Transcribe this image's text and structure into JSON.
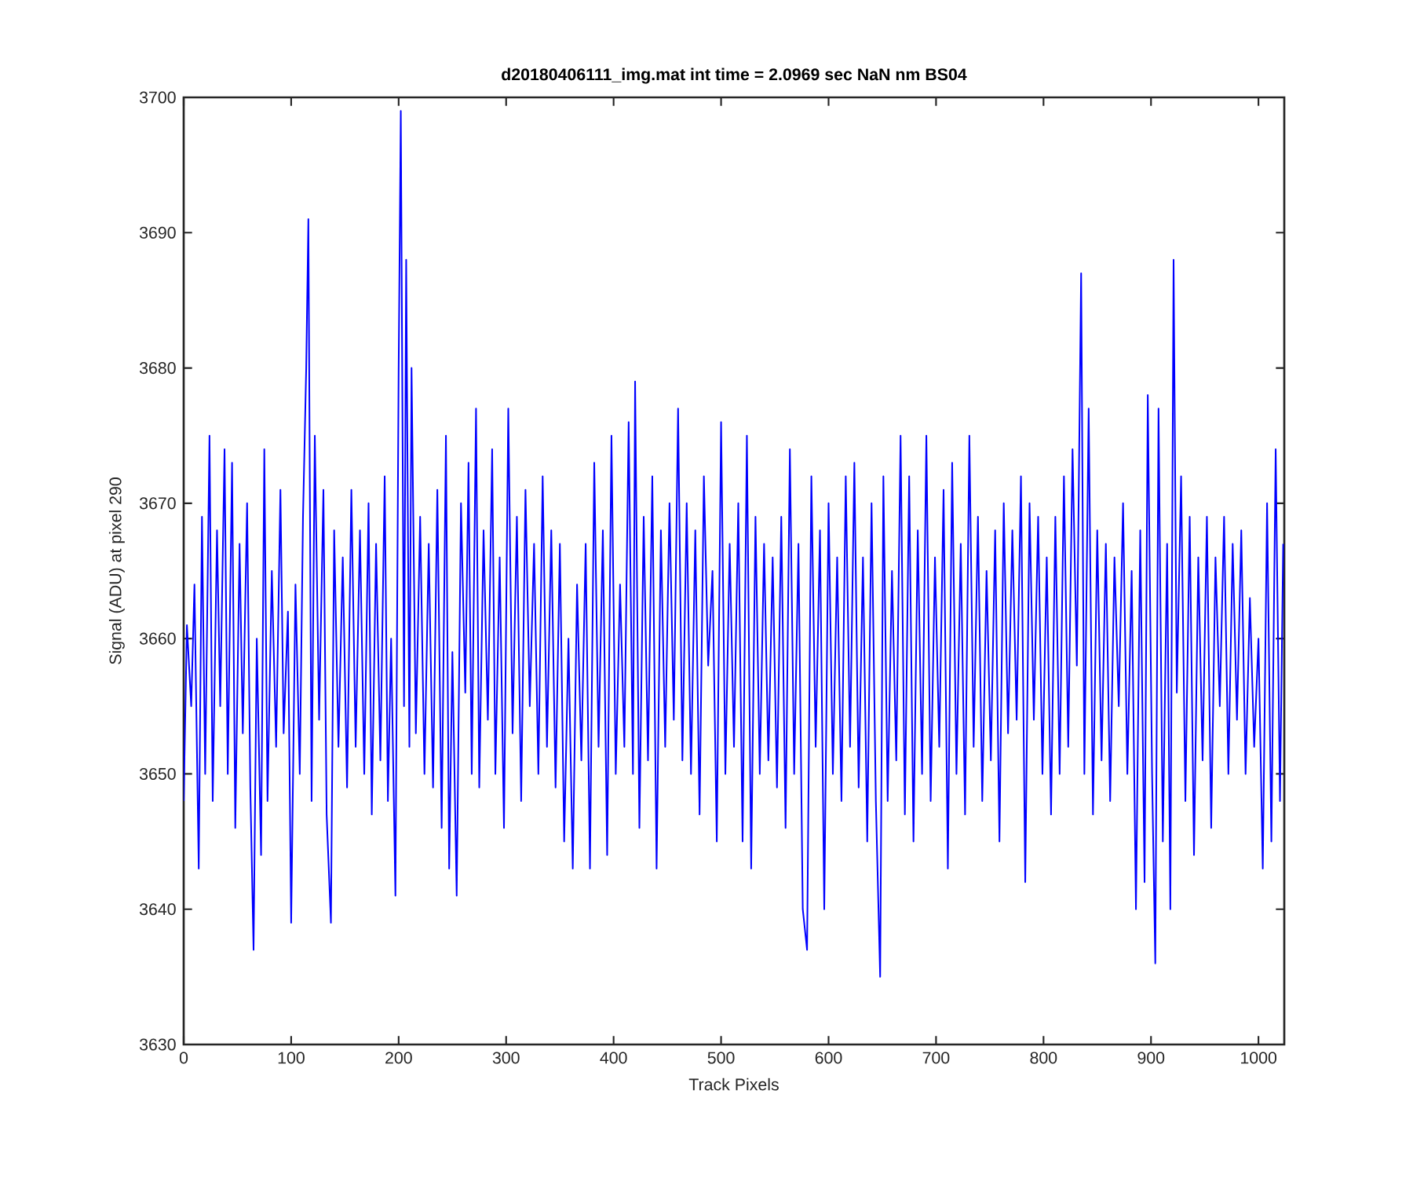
{
  "chart_data": {
    "type": "line",
    "title": "d20180406111_img.mat int time = 2.0969 sec  NaN nm BS04",
    "xlabel": "Track Pixels",
    "ylabel": "Signal (ADU) at pixel 290",
    "xlim": [
      0,
      1024
    ],
    "ylim": [
      3630,
      3700
    ],
    "xticks": [
      0,
      100,
      200,
      300,
      400,
      500,
      600,
      700,
      800,
      900,
      1000
    ],
    "yticks": [
      3630,
      3640,
      3650,
      3660,
      3670,
      3680,
      3690,
      3700
    ],
    "series": [
      {
        "color": "#0000ff",
        "x": [
          0,
          3,
          7,
          10,
          14,
          17,
          20,
          24,
          27,
          31,
          34,
          38,
          41,
          45,
          48,
          52,
          55,
          59,
          62,
          65,
          68,
          72,
          75,
          78,
          82,
          86,
          90,
          93,
          97,
          100,
          104,
          108,
          111,
          114,
          116,
          119,
          122,
          126,
          130,
          133,
          137,
          140,
          144,
          148,
          152,
          156,
          160,
          164,
          168,
          172,
          175,
          179,
          183,
          187,
          190,
          193,
          197,
          200,
          202,
          205,
          207,
          210,
          212,
          216,
          220,
          224,
          228,
          232,
          236,
          240,
          244,
          247,
          250,
          254,
          258,
          262,
          265,
          268,
          272,
          275,
          279,
          283,
          287,
          290,
          294,
          298,
          302,
          306,
          310,
          314,
          318,
          322,
          326,
          330,
          334,
          338,
          342,
          346,
          350,
          354,
          358,
          362,
          366,
          370,
          374,
          378,
          382,
          386,
          390,
          394,
          398,
          402,
          406,
          410,
          414,
          418,
          420,
          424,
          428,
          432,
          436,
          440,
          444,
          448,
          452,
          456,
          460,
          464,
          468,
          472,
          476,
          480,
          484,
          488,
          492,
          496,
          500,
          504,
          508,
          512,
          516,
          520,
          524,
          528,
          532,
          536,
          540,
          544,
          548,
          552,
          556,
          560,
          564,
          568,
          572,
          576,
          580,
          584,
          588,
          592,
          596,
          600,
          604,
          608,
          612,
          616,
          620,
          624,
          628,
          632,
          636,
          640,
          644,
          648,
          651,
          655,
          659,
          663,
          667,
          671,
          675,
          679,
          683,
          687,
          691,
          695,
          699,
          703,
          707,
          711,
          715,
          719,
          723,
          727,
          731,
          735,
          739,
          743,
          747,
          751,
          755,
          759,
          763,
          767,
          771,
          775,
          779,
          783,
          787,
          791,
          795,
          799,
          803,
          807,
          811,
          815,
          819,
          823,
          827,
          831,
          835,
          838,
          842,
          846,
          850,
          854,
          858,
          862,
          866,
          870,
          874,
          878,
          882,
          886,
          890,
          894,
          897,
          901,
          904,
          907,
          911,
          915,
          918,
          921,
          924,
          928,
          932,
          936,
          940,
          944,
          948,
          952,
          956,
          960,
          964,
          968,
          972,
          976,
          980,
          984,
          988,
          992,
          996,
          1000,
          1004,
          1008,
          1012,
          1016,
          1020,
          1023
        ],
        "values": [
          3648,
          3661,
          3655,
          3664,
          3643,
          3669,
          3650,
          3675,
          3648,
          3668,
          3655,
          3674,
          3650,
          3673,
          3646,
          3667,
          3653,
          3670,
          3649,
          3637,
          3660,
          3644,
          3674,
          3648,
          3665,
          3652,
          3671,
          3653,
          3662,
          3639,
          3664,
          3650,
          3669,
          3680,
          3691,
          3648,
          3675,
          3654,
          3671,
          3647,
          3639,
          3668,
          3652,
          3666,
          3649,
          3671,
          3652,
          3668,
          3650,
          3670,
          3647,
          3667,
          3651,
          3672,
          3648,
          3660,
          3641,
          3680,
          3699,
          3655,
          3688,
          3652,
          3680,
          3653,
          3669,
          3650,
          3667,
          3649,
          3671,
          3646,
          3675,
          3643,
          3659,
          3641,
          3670,
          3656,
          3673,
          3650,
          3677,
          3649,
          3668,
          3654,
          3674,
          3650,
          3666,
          3646,
          3677,
          3653,
          3669,
          3648,
          3671,
          3655,
          3667,
          3650,
          3672,
          3652,
          3668,
          3649,
          3667,
          3645,
          3660,
          3643,
          3664,
          3651,
          3667,
          3643,
          3673,
          3652,
          3668,
          3644,
          3675,
          3650,
          3664,
          3652,
          3676,
          3650,
          3679,
          3646,
          3669,
          3651,
          3672,
          3643,
          3668,
          3652,
          3670,
          3654,
          3677,
          3651,
          3670,
          3650,
          3668,
          3647,
          3672,
          3658,
          3665,
          3645,
          3676,
          3650,
          3667,
          3652,
          3670,
          3645,
          3675,
          3643,
          3669,
          3650,
          3667,
          3651,
          3666,
          3649,
          3669,
          3646,
          3674,
          3650,
          3667,
          3640,
          3637,
          3672,
          3652,
          3668,
          3640,
          3670,
          3650,
          3666,
          3648,
          3672,
          3652,
          3673,
          3649,
          3666,
          3645,
          3670,
          3648,
          3635,
          3672,
          3648,
          3665,
          3651,
          3675,
          3647,
          3672,
          3645,
          3668,
          3650,
          3675,
          3648,
          3666,
          3652,
          3671,
          3643,
          3673,
          3650,
          3667,
          3647,
          3675,
          3652,
          3669,
          3648,
          3665,
          3651,
          3668,
          3645,
          3670,
          3653,
          3668,
          3654,
          3672,
          3642,
          3670,
          3654,
          3669,
          3650,
          3666,
          3647,
          3669,
          3650,
          3672,
          3652,
          3674,
          3658,
          3687,
          3650,
          3677,
          3647,
          3668,
          3651,
          3667,
          3648,
          3666,
          3655,
          3670,
          3650,
          3665,
          3640,
          3668,
          3642,
          3678,
          3650,
          3636,
          3677,
          3645,
          3667,
          3640,
          3688,
          3656,
          3672,
          3648,
          3669,
          3644,
          3666,
          3651,
          3669,
          3646,
          3666,
          3655,
          3669,
          3650,
          3667,
          3654,
          3668,
          3650,
          3663,
          3652,
          3660,
          3643,
          3670,
          3645,
          3674,
          3648,
          3667
        ]
      }
    ]
  }
}
